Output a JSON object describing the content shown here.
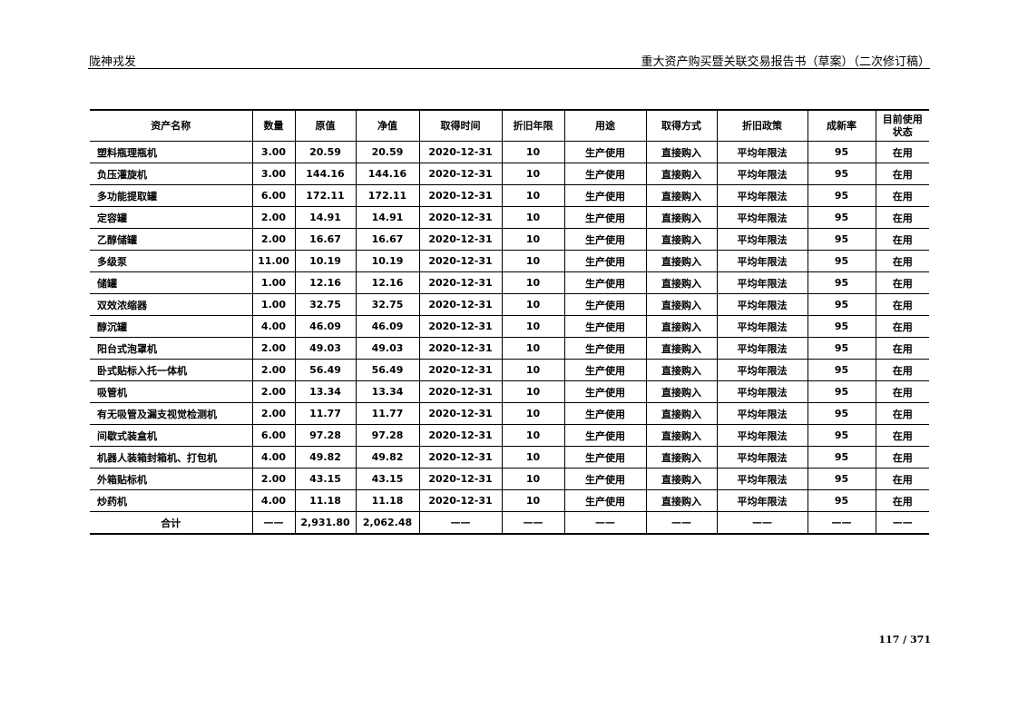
{
  "header": {
    "company": "陇神戎发",
    "title": "重大资产购买暨关联交易报告书（草案）（二次修订稿）"
  },
  "table": {
    "columns": [
      "资产名称",
      "数量",
      "原值",
      "净值",
      "取得时间",
      "折旧年限",
      "用途",
      "取得方式",
      "折旧政策",
      "成新率",
      "目前使用状态"
    ],
    "rows": [
      [
        "塑料瓶理瓶机",
        "3.00",
        "20.59",
        "20.59",
        "2020-12-31",
        "10",
        "生产使用",
        "直接购入",
        "平均年限法",
        "95",
        "在用"
      ],
      [
        "负压灌旋机",
        "3.00",
        "144.16",
        "144.16",
        "2020-12-31",
        "10",
        "生产使用",
        "直接购入",
        "平均年限法",
        "95",
        "在用"
      ],
      [
        "多功能提取罐",
        "6.00",
        "172.11",
        "172.11",
        "2020-12-31",
        "10",
        "生产使用",
        "直接购入",
        "平均年限法",
        "95",
        "在用"
      ],
      [
        "定容罐",
        "2.00",
        "14.91",
        "14.91",
        "2020-12-31",
        "10",
        "生产使用",
        "直接购入",
        "平均年限法",
        "95",
        "在用"
      ],
      [
        "乙醇储罐",
        "2.00",
        "16.67",
        "16.67",
        "2020-12-31",
        "10",
        "生产使用",
        "直接购入",
        "平均年限法",
        "95",
        "在用"
      ],
      [
        "多级泵",
        "11.00",
        "10.19",
        "10.19",
        "2020-12-31",
        "10",
        "生产使用",
        "直接购入",
        "平均年限法",
        "95",
        "在用"
      ],
      [
        "储罐",
        "1.00",
        "12.16",
        "12.16",
        "2020-12-31",
        "10",
        "生产使用",
        "直接购入",
        "平均年限法",
        "95",
        "在用"
      ],
      [
        "双效浓缩器",
        "1.00",
        "32.75",
        "32.75",
        "2020-12-31",
        "10",
        "生产使用",
        "直接购入",
        "平均年限法",
        "95",
        "在用"
      ],
      [
        "醇沉罐",
        "4.00",
        "46.09",
        "46.09",
        "2020-12-31",
        "10",
        "生产使用",
        "直接购入",
        "平均年限法",
        "95",
        "在用"
      ],
      [
        "阳台式泡罩机",
        "2.00",
        "49.03",
        "49.03",
        "2020-12-31",
        "10",
        "生产使用",
        "直接购入",
        "平均年限法",
        "95",
        "在用"
      ],
      [
        "卧式贴标入托一体机",
        "2.00",
        "56.49",
        "56.49",
        "2020-12-31",
        "10",
        "生产使用",
        "直接购入",
        "平均年限法",
        "95",
        "在用"
      ],
      [
        "吸管机",
        "2.00",
        "13.34",
        "13.34",
        "2020-12-31",
        "10",
        "生产使用",
        "直接购入",
        "平均年限法",
        "95",
        "在用"
      ],
      [
        "有无吸管及漏支视觉检测机",
        "2.00",
        "11.77",
        "11.77",
        "2020-12-31",
        "10",
        "生产使用",
        "直接购入",
        "平均年限法",
        "95",
        "在用"
      ],
      [
        "间歇式装盒机",
        "6.00",
        "97.28",
        "97.28",
        "2020-12-31",
        "10",
        "生产使用",
        "直接购入",
        "平均年限法",
        "95",
        "在用"
      ],
      [
        "机器人装箱封箱机、打包机",
        "4.00",
        "49.82",
        "49.82",
        "2020-12-31",
        "10",
        "生产使用",
        "直接购入",
        "平均年限法",
        "95",
        "在用"
      ],
      [
        "外箱贴标机",
        "2.00",
        "43.15",
        "43.15",
        "2020-12-31",
        "10",
        "生产使用",
        "直接购入",
        "平均年限法",
        "95",
        "在用"
      ],
      [
        "炒药机",
        "4.00",
        "11.18",
        "11.18",
        "2020-12-31",
        "10",
        "生产使用",
        "直接购入",
        "平均年限法",
        "95",
        "在用"
      ]
    ],
    "total": [
      "合计",
      "——",
      "2,931.80",
      "2,062.48",
      "——",
      "——",
      "——",
      "——",
      "——",
      "——",
      "——"
    ]
  },
  "footer": {
    "page": "117 / 371"
  }
}
